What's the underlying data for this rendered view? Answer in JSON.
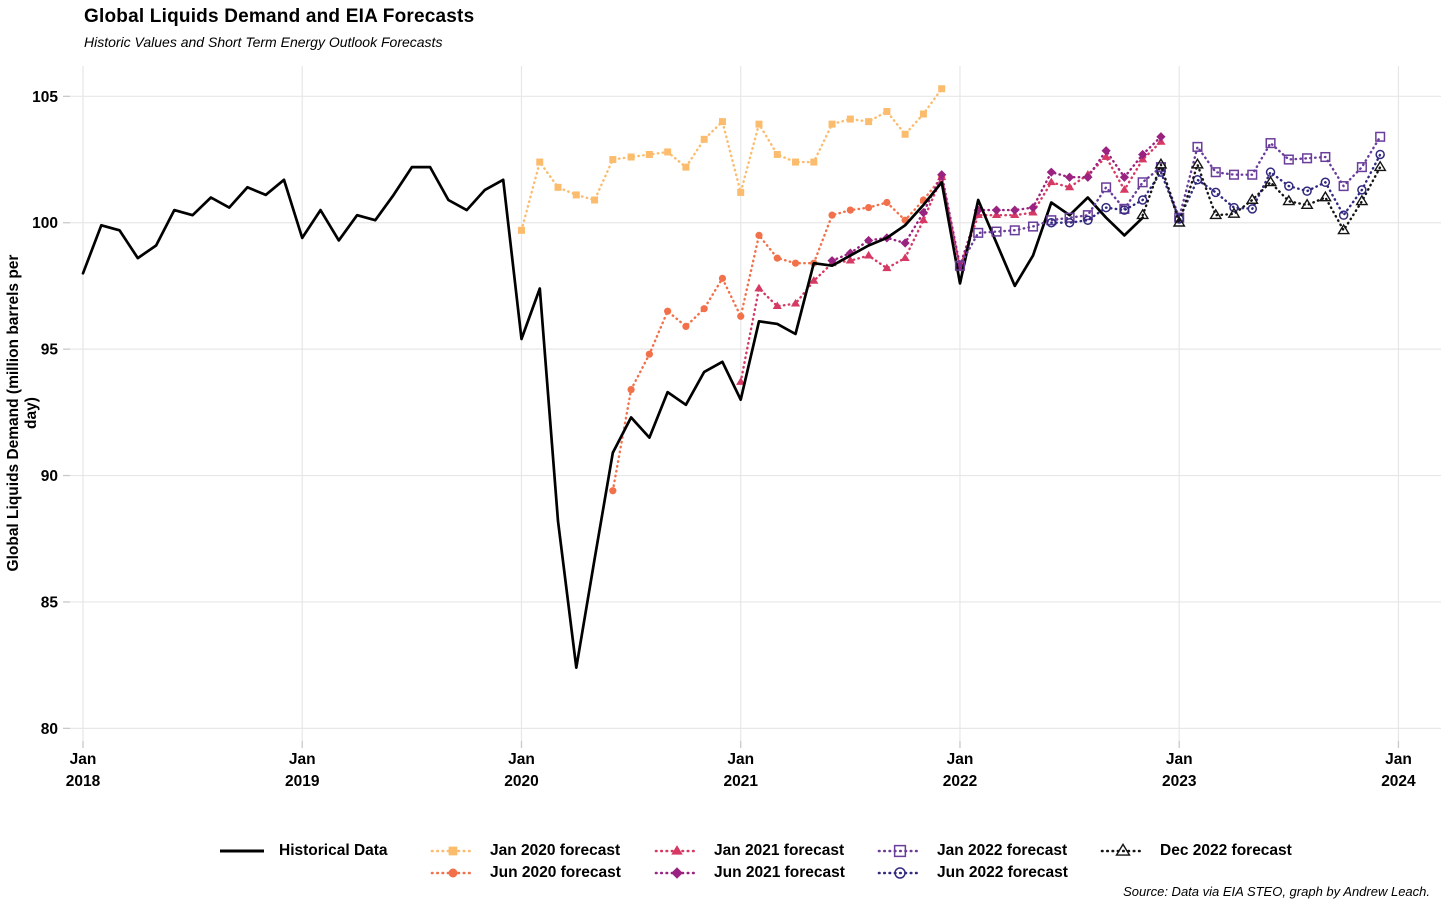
{
  "chart_data": {
    "type": "line",
    "title": "Global Liquids Demand and EIA Forecasts",
    "subtitle": "Historic Values and Short Term Energy Outlook Forecasts",
    "ylabel": "Global Liquids Demand (million barrels per day)",
    "source": "Source: Data via EIA STEO, graph by Andrew Leach.",
    "ylim": [
      79.5,
      106.2
    ],
    "y_ticks": [
      80,
      85,
      90,
      95,
      100,
      105
    ],
    "x_ticks": [
      {
        "month": 0,
        "line1": "Jan",
        "line2": "2018"
      },
      {
        "month": 12,
        "line1": "Jan",
        "line2": "2019"
      },
      {
        "month": 24,
        "line1": "Jan",
        "line2": "2020"
      },
      {
        "month": 36,
        "line1": "Jan",
        "line2": "2021"
      },
      {
        "month": 48,
        "line1": "Jan",
        "line2": "2022"
      },
      {
        "month": 60,
        "line1": "Jan",
        "line2": "2023"
      },
      {
        "month": 72,
        "line1": "Jan",
        "line2": "2024"
      }
    ],
    "grid_color": "#e7e7e7",
    "tick_color": "#c9c9c9",
    "series": [
      {
        "id": "historical",
        "label": "Historical Data",
        "color": "#000000",
        "line": "solid",
        "marker": "none",
        "filled": true,
        "start_month": 0,
        "values": [
          98.0,
          99.9,
          99.7,
          98.6,
          99.1,
          100.5,
          100.3,
          101.0,
          100.6,
          101.4,
          101.1,
          101.7,
          99.4,
          100.5,
          99.3,
          100.3,
          100.1,
          101.1,
          102.2,
          102.2,
          100.9,
          100.5,
          101.3,
          101.7,
          95.4,
          97.4,
          88.2,
          82.4,
          86.7,
          90.9,
          92.3,
          91.5,
          93.3,
          92.8,
          94.1,
          94.5,
          93.0,
          96.1,
          96.0,
          95.6,
          98.4,
          98.3,
          98.7,
          99.1,
          99.4,
          99.9,
          100.7,
          101.6,
          97.6,
          100.9,
          99.2,
          97.5,
          98.7,
          100.8,
          100.3,
          101.0,
          100.2,
          99.5,
          100.2
        ]
      },
      {
        "id": "jan2020",
        "label": "Jan 2020 forecast",
        "color": "#fbbc6e",
        "line": "dotted",
        "marker": "square",
        "filled": true,
        "start_month": 24,
        "values": [
          99.7,
          102.4,
          101.4,
          101.1,
          100.9,
          102.5,
          102.6,
          102.7,
          102.8,
          102.2,
          103.3,
          104.0,
          101.2,
          103.9,
          102.7,
          102.4,
          102.4,
          103.9,
          104.1,
          104.0,
          104.4,
          103.5,
          104.3,
          105.3
        ]
      },
      {
        "id": "jun2020",
        "label": "Jun 2020 forecast",
        "color": "#f2714b",
        "line": "dotted",
        "marker": "circle",
        "filled": true,
        "start_month": 29,
        "values": [
          89.4,
          93.4,
          94.8,
          96.5,
          95.9,
          96.6,
          97.8,
          96.3,
          99.5,
          98.6,
          98.4,
          98.4,
          100.3,
          100.5,
          100.6,
          100.8,
          100.1,
          100.9,
          101.8
        ]
      },
      {
        "id": "jan2021",
        "label": "Jan 2021 forecast",
        "color": "#d63964",
        "line": "dotted",
        "marker": "triangle",
        "filled": true,
        "start_month": 36,
        "values": [
          93.7,
          97.4,
          96.7,
          96.8,
          97.7,
          98.4,
          98.5,
          98.7,
          98.2,
          98.6,
          100.1,
          101.8,
          98.2,
          100.3,
          100.3,
          100.3,
          100.4,
          101.6,
          101.4,
          101.9,
          102.6,
          101.3,
          102.5,
          103.2
        ]
      },
      {
        "id": "jun2021",
        "label": "Jun 2021 forecast",
        "color": "#9a2280",
        "line": "dotted",
        "marker": "diamond",
        "filled": true,
        "start_month": 41,
        "values": [
          98.5,
          98.8,
          99.3,
          99.4,
          99.2,
          100.4,
          101.9,
          98.3,
          100.5,
          100.5,
          100.5,
          100.6,
          102.0,
          101.8,
          101.8,
          102.85,
          101.8,
          102.7,
          103.4
        ]
      },
      {
        "id": "jan2022",
        "label": "Jan 2022 forecast",
        "color": "#6a3d9b",
        "line": "dotted",
        "marker": "square",
        "filled": false,
        "start_month": 48,
        "values": [
          98.3,
          99.6,
          99.65,
          99.7,
          99.85,
          100.1,
          100.2,
          100.3,
          101.4,
          100.55,
          101.6,
          102.2,
          100.2,
          103.0,
          102.0,
          101.9,
          101.9,
          103.15,
          102.5,
          102.55,
          102.6,
          101.45,
          102.2,
          103.4
        ]
      },
      {
        "id": "jun2022",
        "label": "Jun 2022 forecast",
        "color": "#322a7e",
        "line": "dotted",
        "marker": "circle",
        "filled": false,
        "start_month": 53,
        "values": [
          100.0,
          100.0,
          100.1,
          100.6,
          100.5,
          100.9,
          102.0,
          100.15,
          101.7,
          101.2,
          100.6,
          100.55,
          102.0,
          101.45,
          101.25,
          101.6,
          100.3,
          101.3,
          102.7
        ]
      },
      {
        "id": "dec2022",
        "label": "Dec 2022 forecast",
        "color": "#141414",
        "line": "dotted",
        "marker": "triangle",
        "filled": false,
        "start_month": 58,
        "values": [
          100.3,
          102.3,
          100.0,
          102.3,
          100.3,
          100.35,
          100.9,
          101.6,
          100.85,
          100.7,
          101.0,
          99.7,
          100.85,
          102.2
        ]
      }
    ]
  }
}
